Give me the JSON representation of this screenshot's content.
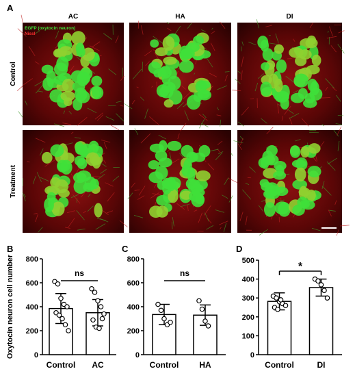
{
  "panel_a": {
    "label": "A",
    "columns": [
      "AC",
      "HA",
      "DI"
    ],
    "rows": [
      "Control",
      "Treatment"
    ],
    "legend": [
      "EGFP (oxytocin neuron)",
      "Nissl"
    ]
  },
  "chart_data": [
    {
      "panel": "B",
      "type": "bar",
      "y_label": "Oxytocin neuron cell number",
      "categories": [
        "Control",
        "AC"
      ],
      "values": [
        385,
        350
      ],
      "errors": [
        125,
        110
      ],
      "points": [
        [
          610,
          590,
          470,
          420,
          400,
          350,
          330,
          300,
          250,
          200
        ],
        [
          550,
          520,
          450,
          400,
          340,
          290,
          230,
          220,
          300
        ]
      ],
      "ylim": [
        0,
        800
      ],
      "yticks": [
        0,
        200,
        400,
        600,
        800
      ],
      "annotation": "ns"
    },
    {
      "panel": "C",
      "type": "bar",
      "categories": [
        "Control",
        "HA"
      ],
      "values": [
        335,
        330
      ],
      "errors": [
        85,
        85
      ],
      "points": [
        [
          420,
          370,
          300,
          250,
          270
        ],
        [
          450,
          380,
          280,
          240
        ]
      ],
      "ylim": [
        0,
        800
      ],
      "yticks": [
        0,
        200,
        400,
        600,
        800
      ],
      "annotation": "ns"
    },
    {
      "panel": "D",
      "type": "bar",
      "categories": [
        "Control",
        "DI"
      ],
      "values": [
        282,
        355
      ],
      "errors": [
        45,
        45
      ],
      "points": [
        [
          310,
          300,
          280,
          270,
          260,
          250,
          240,
          290
        ],
        [
          400,
          390,
          370,
          340,
          300
        ]
      ],
      "ylim": [
        0,
        500
      ],
      "yticks": [
        0,
        100,
        200,
        300,
        400,
        500
      ],
      "annotation": "*"
    }
  ]
}
